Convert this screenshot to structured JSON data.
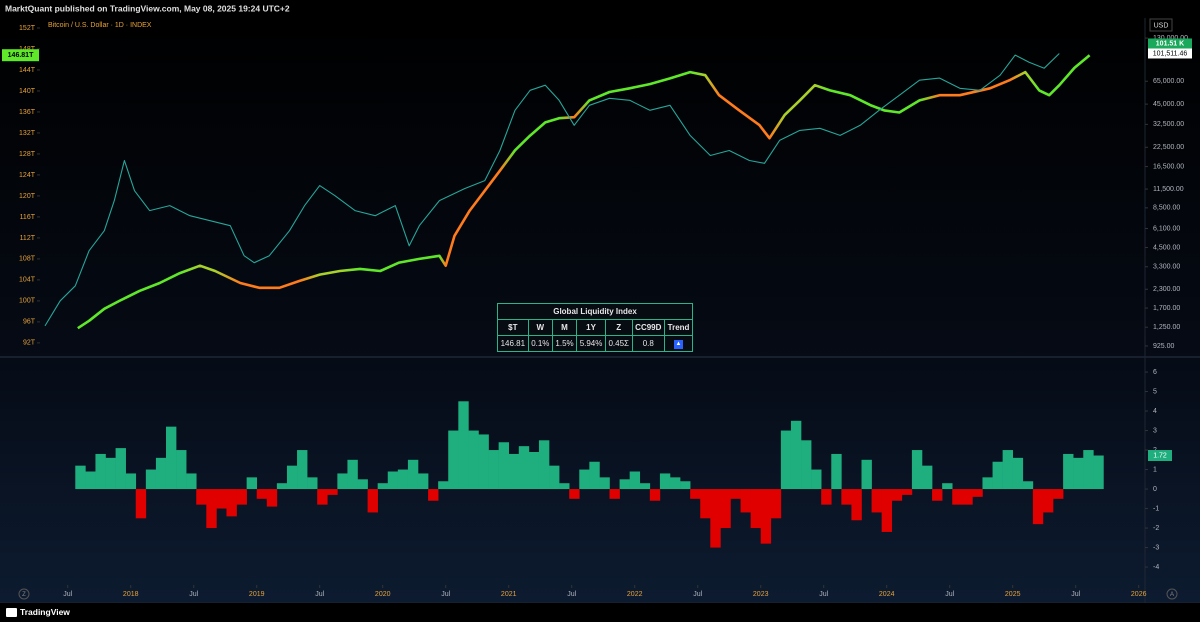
{
  "header": {
    "publisher": "MarktQuant published on TradingView.com, May 08, 2025 19:24 UTC+2",
    "currency": "USD"
  },
  "chart_data": [
    {
      "type": "line",
      "title": "Bitcoin / U.S. Dollar · 1D · INDEX",
      "xlim": [
        2017.28,
        2026.05
      ],
      "ylim": [
        89.5,
        153.9
      ],
      "yticks": [
        {
          "value": 152,
          "label": "152T"
        },
        {
          "value": 148,
          "label": "148T"
        },
        {
          "value": 144,
          "label": "144T"
        },
        {
          "value": 140,
          "label": "140T"
        },
        {
          "value": 136,
          "label": "136T"
        },
        {
          "value": 132,
          "label": "132T"
        },
        {
          "value": 128,
          "label": "128T"
        },
        {
          "value": 124,
          "label": "124T"
        },
        {
          "value": 120,
          "label": "120T"
        },
        {
          "value": 116,
          "label": "116T"
        },
        {
          "value": 112,
          "label": "112T"
        },
        {
          "value": 108,
          "label": "108T"
        },
        {
          "value": 104,
          "label": "104T"
        },
        {
          "value": 100,
          "label": "100T"
        },
        {
          "value": 96,
          "label": "96T"
        },
        {
          "value": 92,
          "label": "92T"
        }
      ],
      "y2lim": [
        787,
        179500
      ],
      "y2log": true,
      "y2ticks": [
        {
          "value": 130000,
          "label": "130,000.00"
        },
        {
          "value": 65000,
          "label": "65,000.00"
        },
        {
          "value": 45000,
          "label": "45,000.00"
        },
        {
          "value": 32500,
          "label": "32,500.00"
        },
        {
          "value": 22500,
          "label": "22,500.00"
        },
        {
          "value": 16500,
          "label": "16,500.00"
        },
        {
          "value": 11500,
          "label": "11,500.00"
        },
        {
          "value": 8500,
          "label": "8,500.00"
        },
        {
          "value": 6100,
          "label": "6,100.00"
        },
        {
          "value": 4500,
          "label": "4,500.00"
        },
        {
          "value": 3300,
          "label": "3,300.00"
        },
        {
          "value": 2300,
          "label": "2,300.00"
        },
        {
          "value": 1700,
          "label": "1,700.00"
        },
        {
          "value": 1250,
          "label": "1,250.00"
        },
        {
          "value": 925,
          "label": "925.00"
        }
      ],
      "series": [
        {
          "color": "#5fe82a",
          "last_label": "146.81T",
          "x": [
            2017.58,
            2017.67,
            2017.79,
            2017.91,
            2018.07,
            2018.23,
            2018.39,
            2018.55,
            2018.67,
            2018.87,
            2019.02,
            2019.18,
            2019.34,
            2019.5,
            2019.66,
            2019.82,
            2019.98,
            2020.13,
            2020.29,
            2020.45,
            2020.5,
            2020.57,
            2020.69,
            2020.81,
            2020.93,
            2021.05,
            2021.17,
            2021.29,
            2021.4,
            2021.52,
            2021.64,
            2021.8,
            2021.96,
            2022.12,
            2022.28,
            2022.44,
            2022.56,
            2022.67,
            2022.83,
            2022.99,
            2023.07,
            2023.19,
            2023.31,
            2023.43,
            2023.55,
            2023.71,
            2023.87,
            2023.98,
            2024.1,
            2024.26,
            2024.42,
            2024.58,
            2024.82,
            2024.98,
            2025.1,
            2025.21,
            2025.29,
            2025.37,
            2025.49,
            2025.61
          ],
          "values": [
            94.8,
            96.2,
            98.5,
            100.0,
            101.9,
            103.4,
            105.3,
            106.7,
            105.7,
            103.4,
            102.5,
            102.5,
            103.8,
            105.0,
            105.7,
            106.1,
            105.7,
            107.3,
            108.0,
            108.6,
            106.7,
            112.4,
            117.2,
            121.0,
            124.8,
            128.7,
            131.5,
            134.0,
            134.8,
            135.0,
            138.2,
            139.8,
            140.5,
            141.3,
            142.4,
            143.6,
            143.0,
            139.2,
            136.3,
            133.5,
            131.0,
            135.4,
            138.2,
            141.1,
            140.1,
            139.2,
            137.3,
            136.3,
            135.9,
            138.2,
            139.2,
            139.2,
            140.5,
            142.1,
            143.6,
            140.1,
            139.2,
            141.1,
            144.4,
            146.81
          ],
          "point_colors": [
            "#5fe82a",
            "#5fe82a",
            "#5fe82a",
            "#5fe82a",
            "#5fe82a",
            "#5fe82a",
            "#5fe82a",
            "#a8d12a",
            "#a8d12a",
            "#ff7b1c",
            "#ff7b1c",
            "#ff7b1c",
            "#ff7b1c",
            "#a8d12a",
            "#a8d12a",
            "#5fe82a",
            "#5fe82a",
            "#5fe82a",
            "#5fe82a",
            "#5fe82a",
            "#ff7b1c",
            "#ff7b1c",
            "#ff7b1c",
            "#ff7b1c",
            "#ff7b1c",
            "#5fe82a",
            "#5fe82a",
            "#5fe82a",
            "#5fe82a",
            "#ff7b1c",
            "#5fe82a",
            "#5fe82a",
            "#5fe82a",
            "#5fe82a",
            "#5fe82a",
            "#5fe82a",
            "#a8d12a",
            "#ff7b1c",
            "#ff7b1c",
            "#ff7b1c",
            "#ff7b1c",
            "#a8d12a",
            "#a8d12a",
            "#a8d12a",
            "#5fe82a",
            "#5fe82a",
            "#5fe82a",
            "#5fe82a",
            "#5fe82a",
            "#5fe82a",
            "#ff7b1c",
            "#ff7b1c",
            "#ff7b1c",
            "#ff7b1c",
            "#a8d12a",
            "#5fe82a",
            "#5fe82a",
            "#5fe82a",
            "#5fe82a",
            "#5fe82a"
          ]
        },
        {
          "axis": "y2",
          "color": "#26a69a",
          "price_tags": [
            "101.51 K",
            "101,511.46"
          ],
          "x": [
            2017.32,
            2017.44,
            2017.56,
            2017.67,
            2017.79,
            2017.87,
            2017.95,
            2018.03,
            2018.15,
            2018.31,
            2018.47,
            2018.63,
            2018.79,
            2018.9,
            2018.98,
            2019.1,
            2019.26,
            2019.38,
            2019.5,
            2019.62,
            2019.78,
            2019.94,
            2020.1,
            2020.21,
            2020.29,
            2020.45,
            2020.65,
            2020.81,
            2020.93,
            2021.05,
            2021.17,
            2021.29,
            2021.4,
            2021.52,
            2021.64,
            2021.8,
            2021.96,
            2022.12,
            2022.28,
            2022.44,
            2022.6,
            2022.75,
            2022.91,
            2023.03,
            2023.15,
            2023.31,
            2023.47,
            2023.63,
            2023.79,
            2023.94,
            2024.1,
            2024.26,
            2024.42,
            2024.58,
            2024.74,
            2024.9,
            2025.02,
            2025.13,
            2025.25,
            2025.37
          ],
          "values": [
            1277,
            1910,
            2430,
            4270,
            5890,
            9550,
            18200,
            11200,
            8130,
            8810,
            7500,
            6920,
            6380,
            3940,
            3520,
            3940,
            5890,
            8810,
            12160,
            10350,
            8130,
            7500,
            8810,
            4620,
            6380,
            9550,
            11580,
            13180,
            21380,
            40740,
            56230,
            60950,
            47860,
            32000,
            44150,
            49430,
            47860,
            40740,
            44150,
            27230,
            19720,
            21380,
            18200,
            17380,
            25120,
            29510,
            30500,
            27230,
            32000,
            40740,
            51880,
            66070,
            68390,
            58070,
            56230,
            71600,
            98900,
            88300,
            80200,
            101511.46
          ]
        }
      ]
    },
    {
      "type": "bar",
      "xlim": [
        2017.28,
        2026.05
      ],
      "xticks": [
        {
          "value": 2017.5,
          "label": "Jul"
        },
        2018,
        {
          "value": 2018.5,
          "label": "Jul"
        },
        2019,
        {
          "value": 2019.5,
          "label": "Jul"
        },
        2020,
        {
          "value": 2020.5,
          "label": "Jul"
        },
        2021,
        {
          "value": 2021.5,
          "label": "Jul"
        },
        2022,
        {
          "value": 2022.5,
          "label": "Jul"
        },
        2023,
        {
          "value": 2023.5,
          "label": "Jul"
        },
        2024,
        {
          "value": 2024.5,
          "label": "Jul"
        },
        2025,
        {
          "value": 2025.5,
          "label": "Jul"
        },
        2026
      ],
      "ylim": [
        -4.92,
        6.72
      ],
      "yticks": [
        6,
        5,
        4,
        3,
        2,
        1,
        0,
        -1,
        -2,
        -3,
        -4
      ],
      "positive_color": "#1fae7e",
      "negative_color": "#e00000",
      "x": [
        2017.6,
        2017.68,
        2017.76,
        2017.84,
        2017.92,
        2018.0,
        2018.08,
        2018.16,
        2018.24,
        2018.32,
        2018.4,
        2018.48,
        2018.56,
        2018.64,
        2018.72,
        2018.8,
        2018.88,
        2018.96,
        2019.04,
        2019.12,
        2019.2,
        2019.28,
        2019.36,
        2019.44,
        2019.52,
        2019.6,
        2019.68,
        2019.76,
        2019.84,
        2019.92,
        2020.0,
        2020.08,
        2020.16,
        2020.24,
        2020.32,
        2020.4,
        2020.48,
        2020.56,
        2020.64,
        2020.72,
        2020.8,
        2020.88,
        2020.96,
        2021.04,
        2021.12,
        2021.2,
        2021.28,
        2021.36,
        2021.44,
        2021.52,
        2021.6,
        2021.68,
        2021.76,
        2021.84,
        2021.92,
        2022.0,
        2022.08,
        2022.16,
        2022.24,
        2022.32,
        2022.4,
        2022.48,
        2022.56,
        2022.64,
        2022.72,
        2022.8,
        2022.88,
        2022.96,
        2023.04,
        2023.12,
        2023.2,
        2023.28,
        2023.36,
        2023.44,
        2023.52,
        2023.6,
        2023.68,
        2023.76,
        2023.84,
        2023.92,
        2024.0,
        2024.08,
        2024.16,
        2024.24,
        2024.32,
        2024.4,
        2024.48,
        2024.56,
        2024.64,
        2024.72,
        2024.8,
        2024.88,
        2024.96,
        2025.04,
        2025.12,
        2025.2,
        2025.28,
        2025.36,
        2025.44,
        2025.52,
        2025.6,
        2025.68
      ],
      "values": [
        1.2,
        0.9,
        1.8,
        1.6,
        2.1,
        0.8,
        -1.5,
        1.0,
        1.6,
        3.2,
        2.0,
        0.8,
        -0.8,
        -2.0,
        -1.0,
        -1.4,
        -0.8,
        0.6,
        -0.5,
        -0.9,
        0.3,
        1.2,
        2.0,
        0.6,
        -0.8,
        -0.3,
        0.8,
        1.5,
        0.5,
        -1.2,
        0.3,
        0.9,
        1.0,
        1.5,
        0.8,
        -0.6,
        0.4,
        3.0,
        4.5,
        3.0,
        2.8,
        2.0,
        2.4,
        1.8,
        2.2,
        1.9,
        2.5,
        1.2,
        0.3,
        -0.5,
        1.0,
        1.4,
        0.6,
        -0.5,
        0.5,
        0.9,
        0.3,
        -0.6,
        0.8,
        0.6,
        0.4,
        -0.5,
        -1.5,
        -3.0,
        -2.0,
        -0.5,
        -1.2,
        -2.0,
        -2.8,
        -1.5,
        3.0,
        3.5,
        2.5,
        1.0,
        -0.8,
        1.8,
        -0.8,
        -1.6,
        1.5,
        -1.2,
        -2.2,
        -0.6,
        -0.3,
        2.0,
        1.2,
        -0.6,
        0.3,
        -0.8,
        -0.8,
        -0.4,
        0.6,
        1.4,
        2.0,
        1.6,
        0.4,
        -1.8,
        -1.2,
        -0.5,
        1.8,
        1.6,
        2.0,
        1.72
      ]
    }
  ],
  "table": {
    "title": "Global Liquidity Index",
    "headers": [
      "$T",
      "W",
      "M",
      "1Y",
      "Z",
      "CC99D",
      "Trend"
    ],
    "row": [
      "146.81",
      "0.1%",
      "1.5%",
      "5.94%",
      "0.45Σ",
      "0.8",
      "▲"
    ]
  },
  "footer": {
    "brand": "TradingView",
    "left_icon": "Z",
    "right_icon": "A"
  }
}
